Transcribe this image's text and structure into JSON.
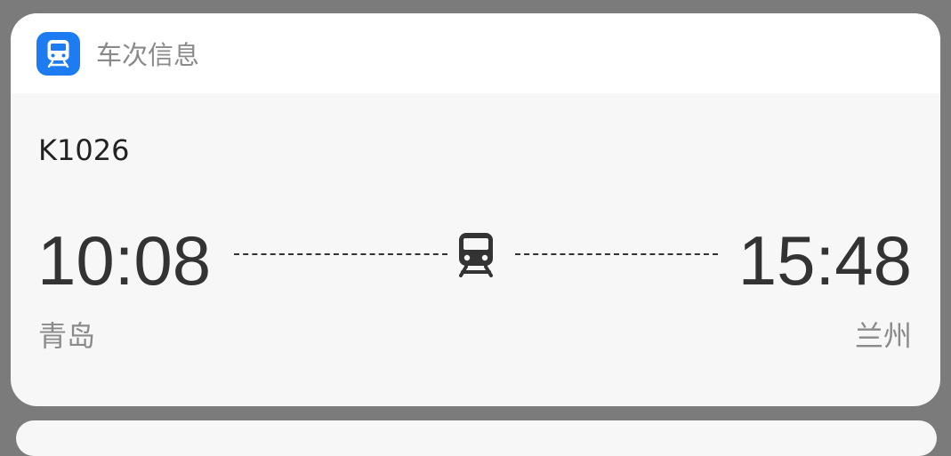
{
  "header": {
    "app_icon": "train-icon",
    "title": "车次信息"
  },
  "trip": {
    "train_number": "K1026",
    "departure_time": "10:08",
    "departure_station": "青岛",
    "arrival_time": "15:48",
    "arrival_station": "兰州",
    "route_icon": "train-icon"
  },
  "colors": {
    "accent": "#1e7cf2",
    "card_bg": "#f7f7f7",
    "header_bg": "#ffffff",
    "primary_text": "#333333",
    "secondary_text": "#8a8a8a"
  }
}
